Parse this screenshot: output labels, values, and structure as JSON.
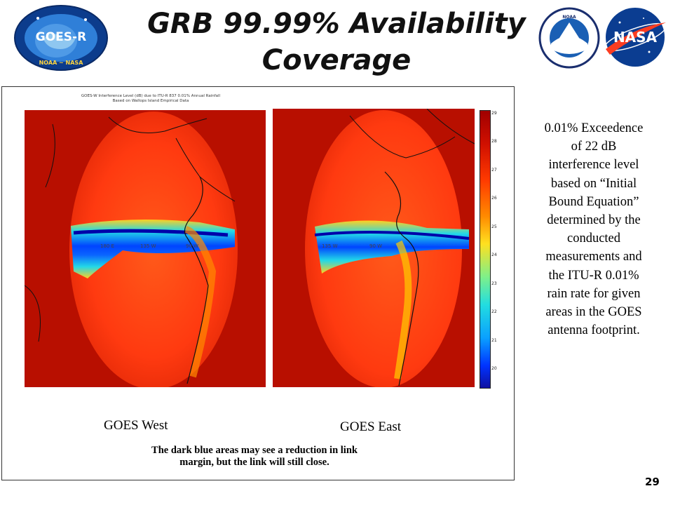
{
  "slide": {
    "title_line1": "GRB 99.99% Availability",
    "title_line2": "Coverage",
    "page_number": "29"
  },
  "logos": {
    "goes": {
      "icon": "goes-r-logo",
      "text": "GOES-R",
      "ring_text": "NOAA ~ NASA"
    },
    "noaa": {
      "icon": "noaa-logo",
      "text": "NOAA"
    },
    "nasa": {
      "icon": "nasa-logo",
      "text": "NASA"
    }
  },
  "figure": {
    "header_line1": "GOES-W Interference Level (dB) due to ITU-R 837 0.01% Annual Rainfall",
    "header_line2": "Based on Wallops Island Empirical Data",
    "west_caption": "GOES  West",
    "east_caption": "GOES  East",
    "west_longitudes": [
      "180 E",
      "135 W",
      "90 W"
    ],
    "east_longitudes": [
      "135 W",
      "90 W"
    ],
    "colorbar_ticks": [
      "29",
      "28",
      "27",
      "26",
      "25",
      "24",
      "23",
      "22",
      "21",
      "20"
    ],
    "note_line1": "The dark blue areas may see a reduction in link",
    "note_line2": "margin, but the link will still close.",
    "colors": {
      "hot": "#c40f00",
      "mid": "#ff4a10",
      "band": "#0a64ff"
    }
  },
  "side_note": {
    "lines": [
      "0.01% Exceedence",
      "of 22 dB",
      "interference level",
      "based on “Initial",
      "Bound Equation”",
      "determined by the",
      "conducted",
      "measurements and",
      "the ITU-R 0.01%",
      "rain rate for given",
      "areas in the GOES",
      "antenna footprint."
    ]
  }
}
